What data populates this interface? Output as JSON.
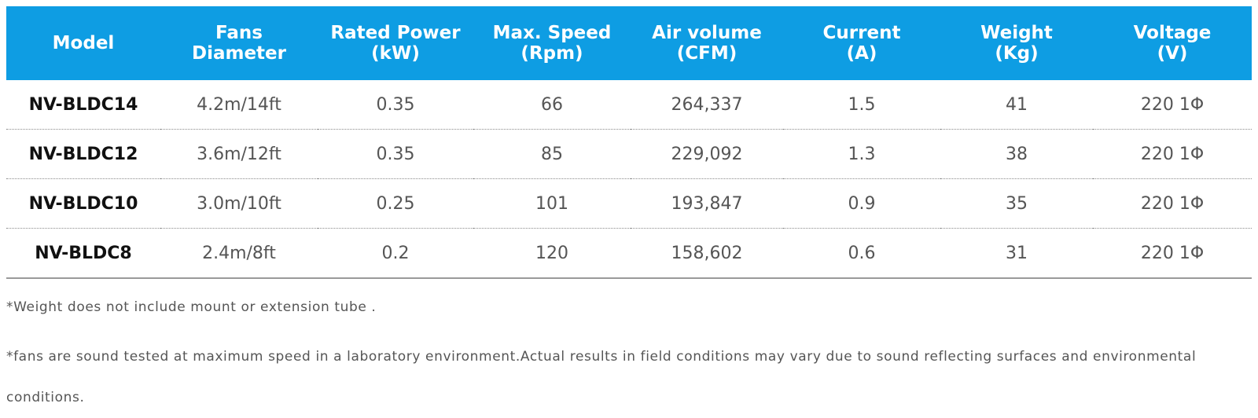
{
  "colors": {
    "header_bg": "#0e9de3",
    "header_text": "#ffffff",
    "body_text": "#555555",
    "model_text": "#111111",
    "divider": "#8a8a8a"
  },
  "table": {
    "headers": [
      [
        "Model"
      ],
      [
        "Fans",
        "Diameter"
      ],
      [
        "Rated Power",
        "(kW)"
      ],
      [
        "Max. Speed",
        "(Rpm)"
      ],
      [
        "Air volume",
        "(CFM)"
      ],
      [
        "Current",
        "(A)"
      ],
      [
        "Weight",
        "(Kg)"
      ],
      [
        "Voltage",
        "(V)"
      ]
    ],
    "rows": [
      [
        "NV-BLDC14",
        "4.2m/14ft",
        "0.35",
        "66",
        "264,337",
        "1.5",
        "41",
        "220 1Φ"
      ],
      [
        "NV-BLDC12",
        "3.6m/12ft",
        "0.35",
        "85",
        "229,092",
        "1.3",
        "38",
        "220 1Φ"
      ],
      [
        "NV-BLDC10",
        "3.0m/10ft",
        "0.25",
        "101",
        "193,847",
        "0.9",
        "35",
        "220 1Φ"
      ],
      [
        "NV-BLDC8",
        "2.4m/8ft",
        "0.2",
        "120",
        "158,602",
        "0.6",
        "31",
        "220 1Φ"
      ]
    ]
  },
  "notes": {
    "weight_note": "*Weight does not include mount or extension tube .",
    "sound_note": "*fans are sound tested at maximum speed in a laboratory environment.Actual results in field conditions may vary due to sound reflecting surfaces and environmental conditions."
  }
}
